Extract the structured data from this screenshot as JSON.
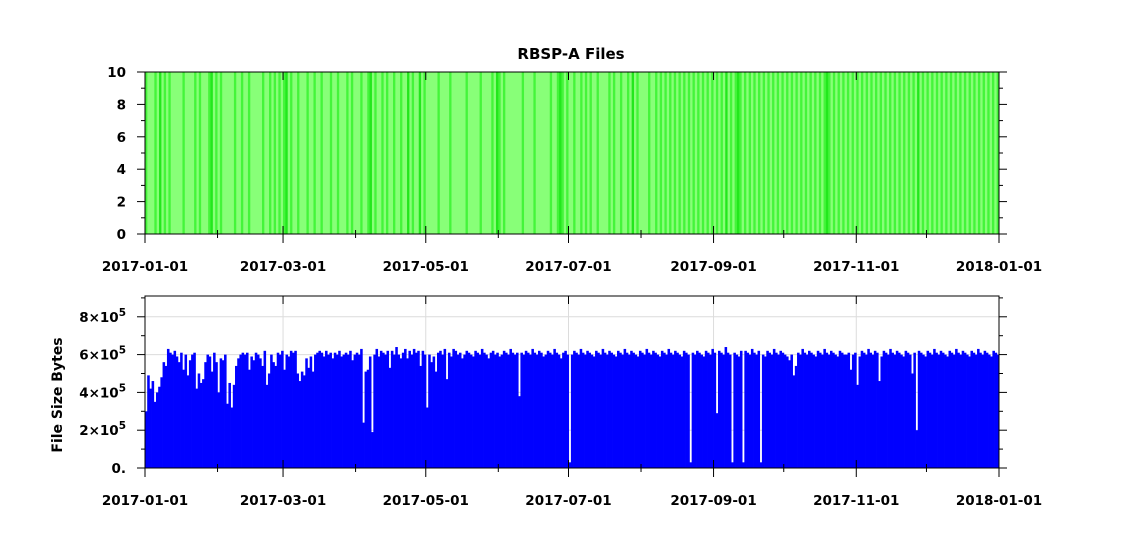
{
  "chart_data": [
    {
      "type": "heatmap",
      "title": "RBSP-A Files",
      "xlabel": "",
      "ylabel": "",
      "x_range": [
        "2017-01-01",
        "2018-01-01"
      ],
      "xticks": [
        "2017-01-01",
        "2017-03-01",
        "2017-05-01",
        "2017-07-01",
        "2017-09-01",
        "2017-11-01",
        "2018-01-01"
      ],
      "ylim": [
        0,
        10
      ],
      "yticks": [
        "0",
        "2",
        "4",
        "6",
        "8",
        "10"
      ],
      "grid": false,
      "colors": {
        "light": "#88ff78",
        "medium": "#44f53a",
        "dark": "#22e81c"
      },
      "dark_days": [
        6,
        28,
        60,
        96,
        112,
        117,
        150,
        177,
        208,
        248,
        253,
        291,
        330
      ],
      "medium_days": [
        0,
        4,
        8,
        10,
        16,
        21,
        23,
        27,
        30,
        32,
        38,
        41,
        44,
        50,
        53,
        55,
        57,
        59,
        62,
        65,
        69,
        72,
        75,
        79,
        82,
        86,
        88,
        92,
        95,
        98,
        101,
        103,
        106,
        109,
        114,
        119,
        125,
        130,
        137,
        143,
        148,
        151,
        153,
        161,
        166,
        173,
        176,
        178,
        180,
        183,
        186,
        188,
        190,
        193,
        198,
        200,
        203,
        206,
        210,
        215,
        218,
        220,
        222,
        224,
        226,
        228,
        230,
        232,
        234,
        236,
        238,
        240,
        242,
        244,
        246,
        248,
        250,
        252,
        254,
        256,
        258,
        260,
        262,
        264,
        266,
        268,
        270,
        272,
        274,
        276,
        278,
        280,
        282,
        284,
        286,
        288,
        290,
        292,
        294,
        296,
        298,
        300,
        302,
        304,
        306,
        308,
        310,
        312,
        314,
        316,
        318,
        320,
        322,
        324,
        326,
        328,
        330,
        332,
        334,
        336,
        338,
        340,
        342,
        344,
        346,
        348,
        350,
        352,
        354,
        356,
        358,
        360,
        362,
        364
      ]
    },
    {
      "type": "bar",
      "title": "",
      "xlabel": "",
      "ylabel": "File Size Bytes",
      "x_range": [
        "2017-01-01",
        "2018-01-01"
      ],
      "xticks": [
        "2017-01-01",
        "2017-03-01",
        "2017-05-01",
        "2017-07-01",
        "2017-09-01",
        "2017-11-01",
        "2018-01-01"
      ],
      "ylim": [
        0,
        910000
      ],
      "yticks": [
        {
          "value": 0,
          "mant": "0.",
          "exp": ""
        },
        {
          "value": 200000,
          "mant": "2×10",
          "exp": "5"
        },
        {
          "value": 400000,
          "mant": "4×10",
          "exp": "5"
        },
        {
          "value": 600000,
          "mant": "6×10",
          "exp": "5"
        },
        {
          "value": 800000,
          "mant": "8×10",
          "exp": "5"
        }
      ],
      "grid": true,
      "bar_color": "#0000ff",
      "series": [
        {
          "values": [
            300000,
            490000,
            420000,
            460000,
            350000,
            400000,
            430000,
            480000,
            560000,
            540000,
            630000,
            610000,
            600000,
            620000,
            590000,
            560000,
            610000,
            520000,
            600000,
            490000,
            570000,
            600000,
            610000,
            420000,
            500000,
            450000,
            470000,
            560000,
            600000,
            590000,
            510000,
            610000,
            560000,
            400000,
            580000,
            570000,
            600000,
            340000,
            450000,
            320000,
            440000,
            540000,
            580000,
            600000,
            610000,
            600000,
            610000,
            520000,
            590000,
            570000,
            610000,
            600000,
            580000,
            540000,
            620000,
            440000,
            500000,
            600000,
            560000,
            540000,
            610000,
            600000,
            620000,
            520000,
            600000,
            590000,
            620000,
            610000,
            620000,
            500000,
            460000,
            510000,
            490000,
            580000,
            530000,
            590000,
            510000,
            600000,
            610000,
            620000,
            610000,
            590000,
            620000,
            600000,
            610000,
            580000,
            610000,
            600000,
            620000,
            590000,
            600000,
            610000,
            600000,
            620000,
            570000,
            600000,
            610000,
            600000,
            630000,
            240000,
            510000,
            520000,
            590000,
            190000,
            600000,
            630000,
            590000,
            620000,
            610000,
            600000,
            620000,
            530000,
            620000,
            600000,
            640000,
            600000,
            580000,
            610000,
            630000,
            580000,
            620000,
            600000,
            630000,
            610000,
            620000,
            540000,
            620000,
            600000,
            320000,
            600000,
            560000,
            590000,
            510000,
            610000,
            620000,
            600000,
            630000,
            470000,
            610000,
            590000,
            630000,
            620000,
            600000,
            610000,
            580000,
            600000,
            620000,
            610000,
            600000,
            590000,
            620000,
            610000,
            600000,
            630000,
            610000,
            600000,
            580000,
            610000,
            620000,
            600000,
            610000,
            590000,
            600000,
            620000,
            610000,
            600000,
            630000,
            610000,
            600000,
            610000,
            380000,
            610000,
            600000,
            620000,
            610000,
            600000,
            630000,
            610000,
            600000,
            620000,
            610000,
            590000,
            600000,
            620000,
            610000,
            600000,
            630000,
            610000,
            600000,
            580000,
            610000,
            620000,
            600000,
            30000,
            600000,
            620000,
            610000,
            600000,
            630000,
            610000,
            600000,
            620000,
            610000,
            600000,
            590000,
            620000,
            610000,
            600000,
            630000,
            610000,
            600000,
            620000,
            610000,
            600000,
            590000,
            620000,
            610000,
            600000,
            630000,
            610000,
            600000,
            620000,
            610000,
            600000,
            590000,
            620000,
            610000,
            600000,
            630000,
            610000,
            600000,
            620000,
            610000,
            600000,
            590000,
            620000,
            610000,
            600000,
            630000,
            610000,
            600000,
            620000,
            610000,
            600000,
            590000,
            620000,
            610000,
            600000,
            30000,
            610000,
            600000,
            620000,
            610000,
            600000,
            590000,
            620000,
            610000,
            600000,
            630000,
            610000,
            290000,
            620000,
            610000,
            600000,
            640000,
            610000,
            600000,
            30000,
            610000,
            600000,
            590000,
            620000,
            30000,
            620000,
            610000,
            600000,
            630000,
            610000,
            600000,
            620000,
            30000,
            600000,
            590000,
            620000,
            610000,
            600000,
            630000,
            610000,
            600000,
            620000,
            610000,
            600000,
            590000,
            570000,
            600000,
            490000,
            540000,
            610000,
            600000,
            630000,
            610000,
            600000,
            620000,
            610000,
            600000,
            590000,
            620000,
            610000,
            600000,
            630000,
            610000,
            600000,
            620000,
            610000,
            600000,
            590000,
            620000,
            610000,
            600000,
            600000,
            610000,
            520000,
            600000,
            610000,
            440000,
            590000,
            620000,
            610000,
            600000,
            630000,
            610000,
            600000,
            620000,
            610000,
            460000,
            590000,
            620000,
            610000,
            600000,
            630000,
            610000,
            600000,
            620000,
            610000,
            600000,
            590000,
            620000,
            610000,
            600000,
            500000,
            610000,
            200000,
            620000,
            610000,
            600000,
            590000,
            620000,
            610000,
            600000,
            630000,
            610000,
            600000,
            620000,
            610000,
            600000,
            590000,
            620000,
            610000,
            600000,
            630000,
            610000,
            600000,
            620000,
            610000,
            600000,
            590000,
            620000,
            610000,
            600000,
            630000,
            610000,
            600000,
            620000,
            610000,
            600000,
            590000,
            620000,
            610000,
            600000
          ]
        }
      ]
    }
  ]
}
